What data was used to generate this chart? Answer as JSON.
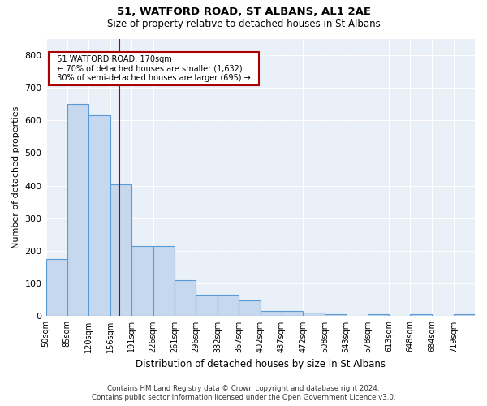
{
  "title1": "51, WATFORD ROAD, ST ALBANS, AL1 2AE",
  "title2": "Size of property relative to detached houses in St Albans",
  "xlabel": "Distribution of detached houses by size in St Albans",
  "ylabel": "Number of detached properties",
  "footer1": "Contains HM Land Registry data © Crown copyright and database right 2024.",
  "footer2": "Contains public sector information licensed under the Open Government Licence v3.0.",
  "annotation_title": "51 WATFORD ROAD: 170sqm",
  "annotation_line1": "← 70% of detached houses are smaller (1,632)",
  "annotation_line2": "30% of semi-detached houses are larger (695) →",
  "bar_edges": [
    50,
    85,
    120,
    156,
    191,
    226,
    261,
    296,
    332,
    367,
    402,
    437,
    472,
    508,
    543,
    578,
    613,
    648,
    684,
    719,
    754
  ],
  "bar_heights": [
    175,
    650,
    615,
    405,
    215,
    215,
    110,
    65,
    65,
    48,
    16,
    16,
    12,
    7,
    0,
    7,
    0,
    7,
    0,
    7
  ],
  "property_size": 170,
  "bar_color": "#c5d8ed",
  "bar_edge_color": "#5b9bd5",
  "red_line_color": "#aa0000",
  "background_color": "#eaf0f8",
  "annotation_box_color": "#ffffff",
  "annotation_box_edge": "#aa0000",
  "ylim": [
    0,
    850
  ],
  "yticks": [
    0,
    100,
    200,
    300,
    400,
    500,
    600,
    700,
    800
  ]
}
